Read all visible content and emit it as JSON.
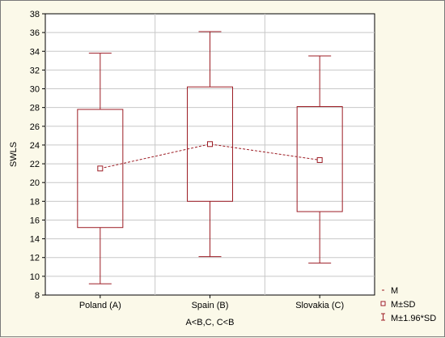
{
  "chart_data": {
    "type": "box",
    "categories": [
      "Poland (A)",
      "Spain (B)",
      "Slovakia (C)"
    ],
    "series": [
      {
        "mean": [
          21.5,
          24.1,
          22.4
        ],
        "sd_low": [
          15.2,
          18.0,
          16.9
        ],
        "sd_high": [
          27.8,
          30.2,
          28.1
        ],
        "ci_low": [
          9.2,
          12.1,
          11.4
        ],
        "ci_high": [
          33.8,
          36.1,
          33.5
        ]
      }
    ],
    "ylabel": "SWLS",
    "xlabel": "A<B,C, C<B",
    "ylim": [
      8,
      38
    ],
    "yticks": [
      "8",
      "10",
      "12",
      "14",
      "16",
      "18",
      "20",
      "22",
      "24",
      "26",
      "28",
      "30",
      "32",
      "34",
      "36",
      "38"
    ],
    "grid": true,
    "legend": {
      "position": "bottom-right",
      "entries": [
        "M",
        "M±SD",
        "M±1.96*SD"
      ]
    },
    "colors": {
      "box": "#9c1c24",
      "grid": "#c8c8c8",
      "plot_bg": "#ffffff",
      "page_bg": "#fbf9e9"
    }
  }
}
